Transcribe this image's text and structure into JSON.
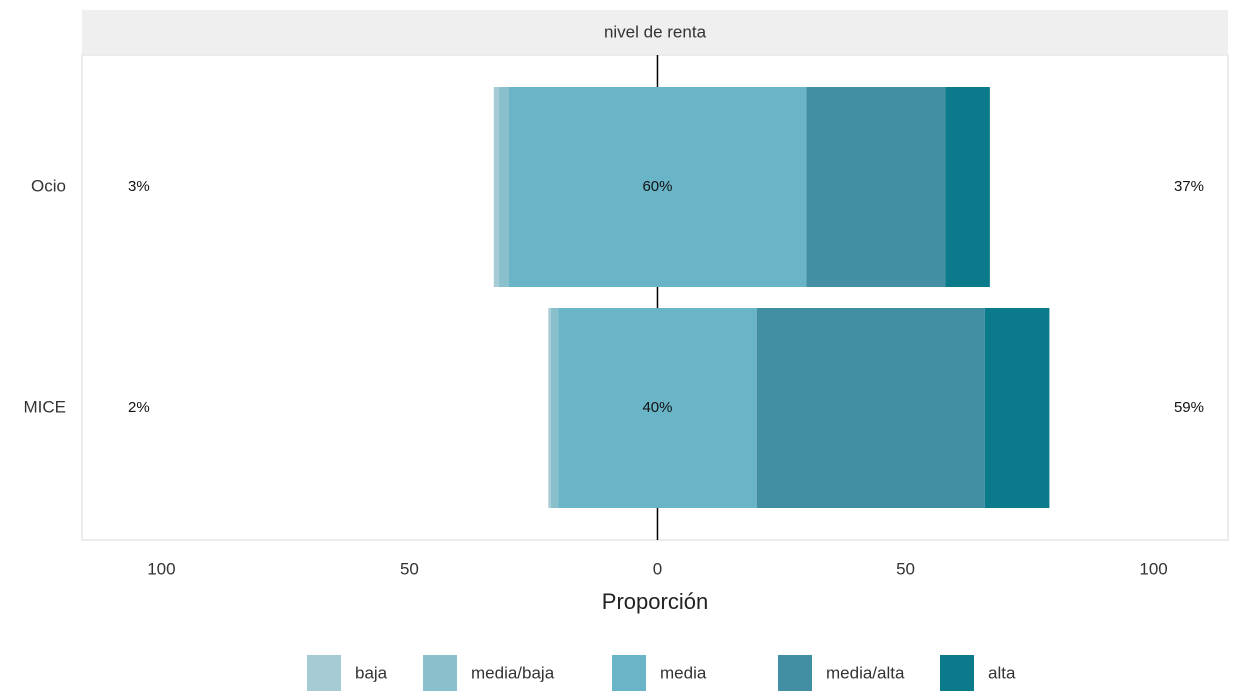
{
  "chart_data": {
    "type": "diverging_bar",
    "strip_title": "nivel de renta",
    "x_label": "Proporción",
    "categories": [
      "Ocio",
      "MICE"
    ],
    "series": [
      {
        "name": "baja",
        "color": "#a6cbd4",
        "values": [
          1,
          0.5
        ]
      },
      {
        "name": "media/baja",
        "color": "#8abfcc",
        "values": [
          2,
          1.5
        ]
      },
      {
        "name": "media",
        "color": "#6ab4c8",
        "values": [
          60,
          40
        ]
      },
      {
        "name": "media/alta",
        "color": "#428fa3",
        "values": [
          28,
          46
        ]
      },
      {
        "name": "alta",
        "color": "#0b7a8a",
        "values": [
          9,
          13
        ]
      }
    ],
    "neutral_series": 2,
    "left_labels": {
      "values": [
        3,
        2
      ],
      "value_labels": [
        "3%",
        "2%"
      ]
    },
    "center_labels": {
      "values": [
        60,
        40
      ],
      "value_labels": [
        "60%",
        "40%"
      ]
    },
    "right_labels": {
      "values": [
        37,
        59
      ],
      "value_labels": [
        "37%",
        "59%"
      ]
    },
    "xlim": [
      -116,
      115
    ],
    "xticks": [
      {
        "value": -100,
        "label": "100"
      },
      {
        "value": -50,
        "label": "50"
      },
      0,
      50,
      100
    ],
    "legend": "bottom"
  }
}
